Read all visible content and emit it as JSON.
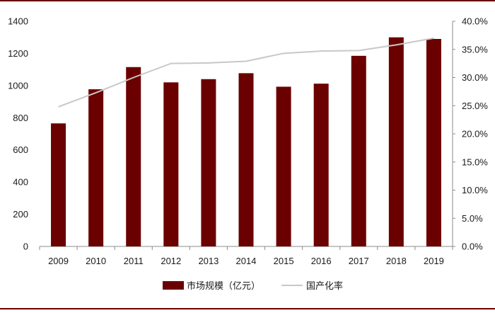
{
  "chart_data": {
    "type": "bar",
    "categories": [
      "2009",
      "2010",
      "2011",
      "2012",
      "2013",
      "2014",
      "2015",
      "2016",
      "2017",
      "2018",
      "2019"
    ],
    "series": [
      {
        "name": "市场规模（亿元）",
        "kind": "bar",
        "axis": "left",
        "color": "#6b0000",
        "values": [
          765,
          977,
          1115,
          1020,
          1040,
          1077,
          993,
          1012,
          1185,
          1300,
          1290
        ]
      },
      {
        "name": "国产化率",
        "kind": "line",
        "axis": "right",
        "color": "#c8c8c8",
        "values": [
          24.8,
          27.3,
          30.0,
          32.5,
          32.6,
          32.9,
          34.3,
          34.7,
          34.8,
          35.8,
          37.0
        ]
      }
    ],
    "ylim_left": [
      0,
      1400
    ],
    "yticks_left": [
      "0",
      "200",
      "400",
      "600",
      "800",
      "1000",
      "1200",
      "1400"
    ],
    "ylim_right": [
      0,
      40
    ],
    "yticks_right": [
      "0.0%",
      "5.0%",
      "10.0%",
      "15.0%",
      "20.0%",
      "25.0%",
      "30.0%",
      "35.0%",
      "40.0%"
    ],
    "grid": false,
    "legend_position": "bottom-center",
    "frame_color": "#6b0000"
  }
}
